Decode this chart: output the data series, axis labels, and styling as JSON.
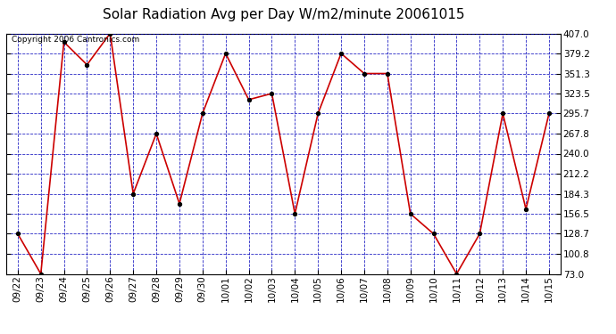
{
  "title": "Solar Radiation Avg per Day W/m2/minute 20061015",
  "copyright_text": "Copyright 2006 Cantronics.com",
  "dates": [
    "09/22",
    "09/23",
    "09/24",
    "09/25",
    "09/26",
    "09/27",
    "09/28",
    "09/29",
    "09/30",
    "10/01",
    "10/02",
    "10/03",
    "10/04",
    "10/05",
    "10/06",
    "10/07",
    "10/08",
    "10/09",
    "10/10",
    "10/11",
    "10/12",
    "10/13",
    "10/14",
    "10/15"
  ],
  "values": [
    128.7,
    73.0,
    395.0,
    363.5,
    407.0,
    184.3,
    267.8,
    170.5,
    295.7,
    379.2,
    315.0,
    323.5,
    156.5,
    295.7,
    379.2,
    351.3,
    351.3,
    156.5,
    128.7,
    73.0,
    128.7,
    295.7,
    163.0,
    295.7
  ],
  "ylim_min": 73.0,
  "ylim_max": 407.0,
  "yticks": [
    73.0,
    100.8,
    128.7,
    156.5,
    184.3,
    212.2,
    240.0,
    267.8,
    295.7,
    323.5,
    351.3,
    379.2,
    407.0
  ],
  "line_color": "#cc0000",
  "marker_color": "#000000",
  "bg_color": "#ffffff",
  "grid_color": "#0000bb",
  "title_fontsize": 11,
  "tick_label_fontsize": 7.5,
  "copyright_fontsize": 6.5
}
